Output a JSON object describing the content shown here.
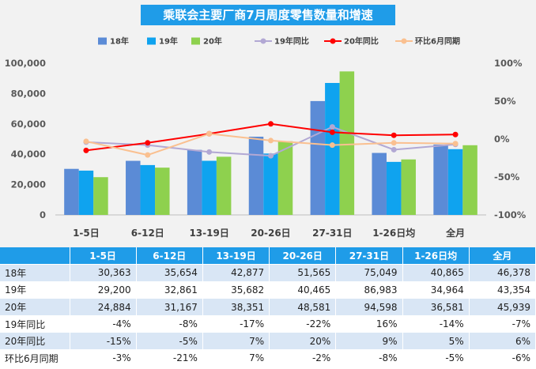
{
  "chart_data": {
    "type": "bar",
    "title": "乘联会主要厂商7月周度零售数量和增速",
    "categories": [
      "1-5日",
      "6-12日",
      "13-19日",
      "20-26日",
      "27-31日",
      "1-26日均",
      "全月"
    ],
    "series": [
      {
        "name": "18年",
        "kind": "bar",
        "axis": "left",
        "color": "#5b8bd6",
        "values": [
          30363,
          35654,
          42877,
          51565,
          75049,
          40865,
          46378
        ]
      },
      {
        "name": "19年",
        "kind": "bar",
        "axis": "left",
        "color": "#0fa3ef",
        "values": [
          29200,
          32861,
          35682,
          40465,
          86983,
          34964,
          43354
        ]
      },
      {
        "name": "20年",
        "kind": "bar",
        "axis": "left",
        "color": "#8ed14e",
        "values": [
          24884,
          31167,
          38351,
          48581,
          94598,
          36581,
          45939
        ]
      },
      {
        "name": "19年同比",
        "kind": "line",
        "axis": "right",
        "color": "#b2a8d4",
        "values": [
          -4,
          -8,
          -17,
          -22,
          16,
          -14,
          -7
        ]
      },
      {
        "name": "20年同比",
        "kind": "line",
        "axis": "right",
        "color": "#ff0000",
        "values": [
          -15,
          -5,
          7,
          20,
          9,
          5,
          6
        ]
      },
      {
        "name": "环比6月同期",
        "kind": "line",
        "axis": "right",
        "color": "#fac090",
        "values": [
          -3,
          -21,
          7,
          -2,
          -8,
          -5,
          -6
        ]
      }
    ],
    "yleft": {
      "min": 0,
      "max": 100000,
      "ticks": [
        "0",
        "20,000",
        "40,000",
        "60,000",
        "80,000",
        "100,000"
      ]
    },
    "yright": {
      "min": -100,
      "max": 100,
      "ticks": [
        "-100%",
        "-50%",
        "0%",
        "50%",
        "100%"
      ]
    },
    "legend_position": "top",
    "grid": false
  },
  "table": {
    "corner": "",
    "headers": [
      "1-5日",
      "6-12日",
      "13-19日",
      "20-26日",
      "27-31日",
      "1-26日均",
      "全月"
    ],
    "rows": [
      {
        "label": "18年",
        "cells": [
          "30,363",
          "35,654",
          "42,877",
          "51,565",
          "75,049",
          "40,865",
          "46,378"
        ]
      },
      {
        "label": "19年",
        "cells": [
          "29,200",
          "32,861",
          "35,682",
          "40,465",
          "86,983",
          "34,964",
          "43,354"
        ]
      },
      {
        "label": "20年",
        "cells": [
          "24,884",
          "31,167",
          "38,351",
          "48,581",
          "94,598",
          "36,581",
          "45,939"
        ]
      },
      {
        "label": "19年同比",
        "cells": [
          "-4%",
          "-8%",
          "-17%",
          "-22%",
          "16%",
          "-14%",
          "-7%"
        ]
      },
      {
        "label": "20年同比",
        "cells": [
          "-15%",
          "-5%",
          "7%",
          "20%",
          "9%",
          "5%",
          "6%"
        ]
      },
      {
        "label": "环比6月同期",
        "cells": [
          "-3%",
          "-21%",
          "7%",
          "-2%",
          "-8%",
          "-5%",
          "-6%"
        ]
      }
    ]
  }
}
